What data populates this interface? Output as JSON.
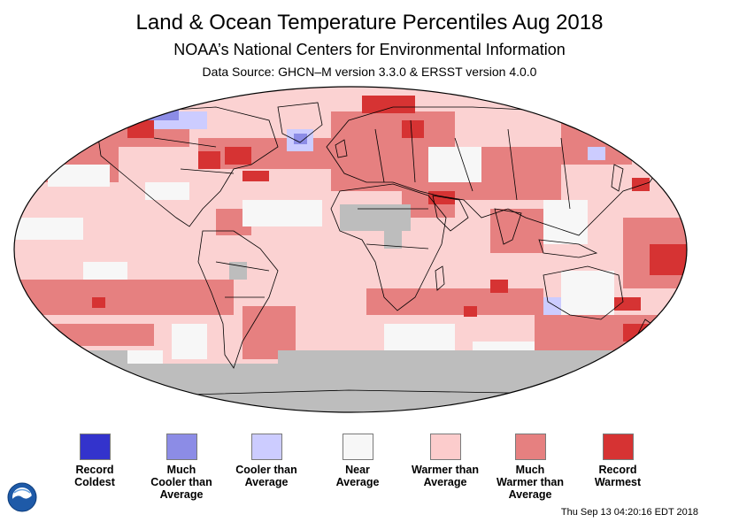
{
  "header": {
    "title": "Land & Ocean Temperature Percentiles Aug 2018",
    "subtitle": "NOAA’s National Centers for Environmental Information",
    "source": "Data Source: GHCN–M version 3.3.0 & ERSST version 4.0.0"
  },
  "map": {
    "ocean_fill": "#fbd2d2",
    "missing_color": "#bdbdbd",
    "outline_color": "#000000"
  },
  "legend": {
    "items": [
      {
        "label_lines": [
          "Record",
          "Coldest"
        ],
        "color": "#3333cc"
      },
      {
        "label_lines": [
          "Much",
          "Cooler than",
          "Average"
        ],
        "color": "#8c8ce6"
      },
      {
        "label_lines": [
          "Cooler than",
          "Average"
        ],
        "color": "#ccccff"
      },
      {
        "label_lines": [
          "Near",
          "Average"
        ],
        "color": "#f7f7f7"
      },
      {
        "label_lines": [
          "Warmer than",
          "Average"
        ],
        "color": "#fccccc"
      },
      {
        "label_lines": [
          "Much",
          "Warmer than",
          "Average"
        ],
        "color": "#e68080"
      },
      {
        "label_lines": [
          "Record",
          "Warmest"
        ],
        "color": "#d63333"
      }
    ]
  },
  "footer": {
    "timestamp": "Thu Sep 13 04:20:16 EDT 2018",
    "logo": "noaa-logo"
  }
}
